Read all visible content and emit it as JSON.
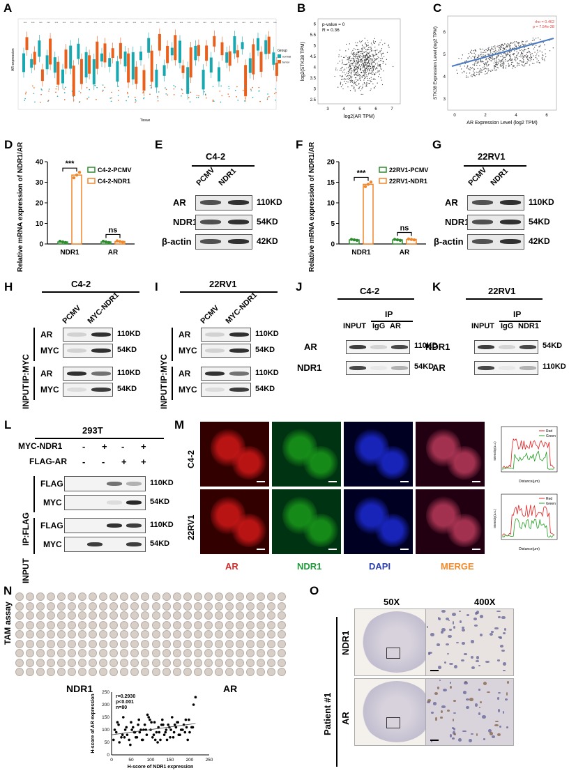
{
  "panels": {
    "A": "A",
    "B": "B",
    "C": "C",
    "D": "D",
    "E": "E",
    "F": "F",
    "G": "G",
    "H": "H",
    "I": "I",
    "J": "J",
    "K": "K",
    "L": "L",
    "M": "M",
    "N": "N",
    "O": "O"
  },
  "A": {
    "ylabel": "AR expression",
    "xlabel": "Tissue",
    "legend_title": "Group",
    "legend": [
      "normal",
      "tumor"
    ],
    "colors": {
      "normal": "#1aa8b0",
      "tumor": "#e8601c"
    }
  },
  "B": {
    "pvalue": "p-value = 0",
    "r": "R = 0.36",
    "xlabel": "log2(AR TPM)",
    "ylabel": "log2(STK38 TPM)",
    "xticks": [
      "3",
      "4",
      "5",
      "6",
      "7"
    ],
    "yticks": [
      "2.5",
      "3",
      "3.5",
      "4",
      "4.5",
      "5",
      "5.5",
      "6"
    ]
  },
  "C": {
    "rho": "rho = 0.462",
    "p": "p = 7.54e-28",
    "xlabel": "AR Expression Level (log2 TPM)",
    "ylabel": "STK38 Expression Level (log2 TPM)",
    "xticks": [
      "0",
      "2",
      "4",
      "6"
    ],
    "yticks": [
      "3",
      "4",
      "5",
      "6"
    ]
  },
  "D": {
    "ylabel": "Relative mRNA expression of NDR1/AR",
    "legend": [
      "C4-2-PCMV",
      "C4-2-NDR1"
    ],
    "sig": [
      "***",
      "ns"
    ]
  },
  "F": {
    "ylabel": "Relative mRNA expression of NDR1/AR",
    "legend": [
      "22RV1-PCMV",
      "22RV1-NDR1"
    ],
    "sig": [
      "***",
      "ns"
    ]
  },
  "E": {
    "cell": "C4-2",
    "lanes": [
      "PCMV",
      "NDR1"
    ],
    "rows": [
      "AR",
      "NDR1",
      "β-actin"
    ],
    "kd": [
      "110KD",
      "54KD",
      "42KD"
    ]
  },
  "G": {
    "cell": "22RV1",
    "lanes": [
      "PCMV",
      "NDR1"
    ],
    "rows": [
      "AR",
      "NDR1",
      "β-actin"
    ],
    "kd": [
      "110KD",
      "54KD",
      "42KD"
    ]
  },
  "H": {
    "cell": "C4-2",
    "lanes": [
      "PCMV",
      "MYC-NDR1"
    ],
    "ip": "IP:MYC",
    "input": "INPUT",
    "rows": [
      "AR",
      "MYC",
      "AR",
      "MYC"
    ],
    "kd": [
      "110KD",
      "54KD",
      "110KD",
      "54KD"
    ]
  },
  "I": {
    "cell": "22RV1",
    "lanes": [
      "PCMV",
      "MYC-NDR1"
    ],
    "ip": "IP:MYC",
    "input": "INPUT",
    "rows": [
      "AR",
      "MYC",
      "AR",
      "MYC"
    ],
    "kd": [
      "110KD",
      "54KD",
      "110KD",
      "54KD"
    ]
  },
  "J": {
    "cell": "C4-2",
    "lanes": [
      "INPUT",
      "IgG",
      "AR"
    ],
    "ip": "IP",
    "rows": [
      "AR",
      "NDR1"
    ],
    "kd": [
      "110KD",
      "54KD"
    ]
  },
  "K": {
    "cell": "22RV1",
    "lanes": [
      "INPUT",
      "IgG",
      "NDR1"
    ],
    "ip": "IP",
    "rows": [
      "NDR1",
      "AR"
    ],
    "kd": [
      "54KD",
      "110KD"
    ]
  },
  "L": {
    "cell": "293T",
    "cond": [
      "MYC-NDR1",
      "FLAG-AR"
    ],
    "signs": [
      [
        "-",
        "+",
        "-",
        "+"
      ],
      [
        "-",
        "-",
        "+",
        "+"
      ]
    ],
    "ip": "IP:FLAG",
    "input": "INPUT",
    "rows": [
      "FLAG",
      "MYC",
      "FLAG",
      "MYC"
    ],
    "kd": [
      "110KD",
      "54KD",
      "110KD",
      "54KD"
    ]
  },
  "M": {
    "rows": [
      "C4-2",
      "22RV1"
    ],
    "cols": [
      "AR",
      "NDR1",
      "DAPI",
      "MERGE"
    ],
    "legend": [
      "Red",
      "Green"
    ],
    "xlabel": "Distance(μm)",
    "ylabel": "Intensity(a.u.)"
  },
  "N": {
    "side": "TAM assay",
    "labels": [
      "NDR1",
      "AR"
    ],
    "stats": [
      "r=0.2930",
      "p<0.001",
      "n=80"
    ],
    "xlabel": "H-score of NDR1 expression",
    "ylabel": "H-score of AR expression"
  },
  "O": {
    "cols": [
      "50X",
      "400X"
    ],
    "patient": "Patient #1",
    "rows": [
      "NDR1",
      "AR"
    ]
  },
  "chart_data": [
    {
      "panel": "D",
      "type": "bar",
      "categories": [
        "NDR1",
        "AR"
      ],
      "series": [
        {
          "name": "C4-2-PCMV",
          "values": [
            1,
            1
          ]
        },
        {
          "name": "C4-2-NDR1",
          "values": [
            33.5,
            1.2
          ]
        }
      ],
      "ylim": [
        0,
        40
      ],
      "yticks": [
        0,
        10,
        20,
        30,
        40
      ],
      "ylabel": "Relative mRNA expression of NDR1/AR",
      "colors": [
        "#2e8b2e",
        "#f0862a"
      ]
    },
    {
      "panel": "F",
      "type": "bar",
      "categories": [
        "NDR1",
        "AR"
      ],
      "series": [
        {
          "name": "22RV1-PCMV",
          "values": [
            1,
            1
          ]
        },
        {
          "name": "22RV1-NDR1",
          "values": [
            14.5,
            1.1
          ]
        }
      ],
      "ylim": [
        0,
        20
      ],
      "yticks": [
        0,
        5,
        10,
        15,
        20
      ],
      "ylabel": "Relative mRNA expression of NDR1/AR",
      "colors": [
        "#2e8b2e",
        "#f0862a"
      ]
    },
    {
      "panel": "N",
      "type": "scatter",
      "xlabel": "H-score of NDR1 expression",
      "ylabel": "H-score of AR expression",
      "xlim": [
        0,
        250
      ],
      "ylim": [
        0,
        250
      ],
      "xticks": [
        0,
        50,
        100,
        150,
        200,
        250
      ],
      "yticks": [
        0,
        50,
        100,
        150,
        200,
        250
      ],
      "x": [
        5,
        12,
        18,
        25,
        30,
        35,
        40,
        45,
        50,
        55,
        60,
        65,
        70,
        75,
        80,
        85,
        90,
        95,
        100,
        105,
        110,
        115,
        120,
        125,
        130,
        135,
        140,
        145,
        150,
        155,
        160,
        165,
        170,
        175,
        180,
        185,
        190,
        195,
        200,
        205,
        210,
        215,
        8,
        20,
        28,
        38,
        48,
        58,
        68,
        78,
        88,
        98,
        108,
        118,
        128,
        138,
        148,
        158,
        168,
        178,
        188,
        198,
        208,
        15,
        33,
        52,
        72,
        92,
        112,
        132,
        152,
        172,
        192,
        62,
        82,
        102,
        122,
        142,
        162,
        182
      ],
      "y": [
        60,
        90,
        120,
        70,
        150,
        100,
        80,
        60,
        130,
        110,
        90,
        70,
        140,
        100,
        60,
        120,
        80,
        150,
        100,
        70,
        130,
        90,
        110,
        60,
        140,
        80,
        100,
        120,
        70,
        150,
        90,
        110,
        130,
        80,
        100,
        120,
        140,
        60,
        90,
        110,
        200,
        230,
        100,
        50,
        80,
        110,
        40,
        90,
        120,
        60,
        100,
        140,
        80,
        50,
        120,
        90,
        110,
        70,
        130,
        100,
        90,
        140,
        110,
        130,
        70,
        100,
        90,
        160,
        60,
        120,
        100,
        80,
        110,
        70,
        100,
        130,
        90,
        60,
        120,
        100
      ],
      "trend": [
        [
          0,
          80
        ],
        [
          215,
          125
        ]
      ],
      "stats": "r=0.2930, p<0.001, n=80"
    }
  ]
}
